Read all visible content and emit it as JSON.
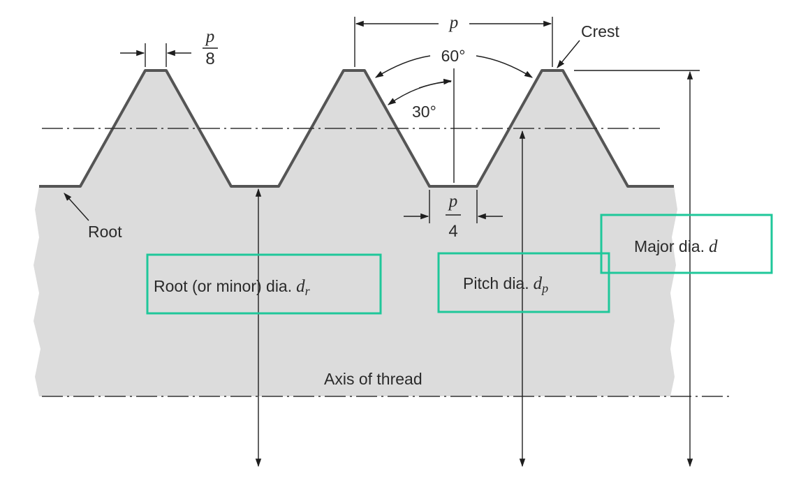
{
  "labels": {
    "pitch": "p",
    "crest": "Crest",
    "angle_60": "60°",
    "angle_30": "30°",
    "crest_width_num": "p",
    "crest_width_den": "8",
    "root_width_num": "p",
    "root_width_den": "4",
    "root": "Root",
    "root_dia": "Root (or minor) dia.",
    "root_dia_sym": "d",
    "root_dia_sub": "r",
    "pitch_dia": "Pitch dia.",
    "pitch_dia_sym": "d",
    "pitch_dia_sub": "p",
    "major_dia": "Major dia.",
    "major_dia_sym": "d",
    "axis": "Axis of thread"
  },
  "colors": {
    "body_fill": "#dcdcdc",
    "thread_outline": "#555555",
    "highlight": "#1fc79a"
  }
}
